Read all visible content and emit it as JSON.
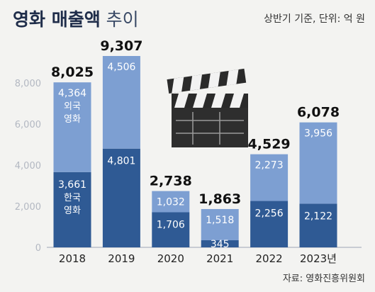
{
  "title_bold": "영화 매출액",
  "title_light": "추이",
  "note": "상반기 기준, 단위: 억 원",
  "source": "자료: 영화진흥위원회",
  "clapper_icon": "film-clapperboard-icon",
  "colors": {
    "domestic": "#2f5a94",
    "foreign": "#7d9fd2",
    "total": "#111111",
    "axis": "#b9bfc9"
  },
  "chart_data": {
    "type": "bar",
    "stacked": true,
    "categories": [
      "2018",
      "2019",
      "2020",
      "2021",
      "2022",
      "2023년"
    ],
    "series": [
      {
        "name": "한국 영화",
        "values": [
          3661,
          4801,
          1706,
          345,
          2256,
          2122
        ],
        "labels": [
          "3,661",
          "4,801",
          "1,706",
          "345",
          "2,256",
          "2,122"
        ]
      },
      {
        "name": "외국 영화",
        "values": [
          4364,
          4506,
          1032,
          1518,
          2273,
          3956
        ],
        "labels": [
          "4,364",
          "4,506",
          "1,032",
          "1,518",
          "2,273",
          "3,956"
        ]
      }
    ],
    "totals": [
      "8,025",
      "9,307",
      "2,738",
      "1,863",
      "4,529",
      "6,078"
    ],
    "ylim": [
      0,
      9307
    ],
    "yticks": [
      0,
      2000,
      4000,
      6000,
      8000
    ],
    "ytick_labels": [
      "0",
      "2,000",
      "4,000",
      "6,000",
      "8,000"
    ],
    "grid": false,
    "legend": "inline-in-first-bar"
  }
}
